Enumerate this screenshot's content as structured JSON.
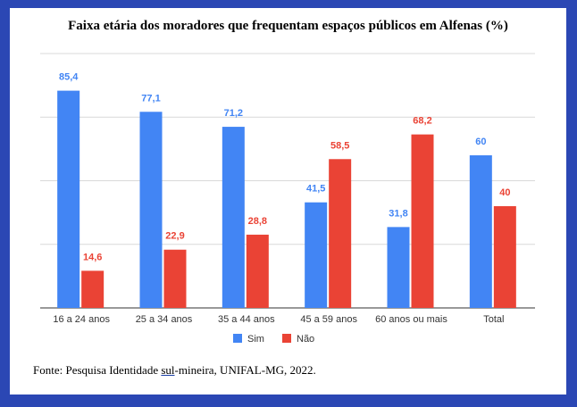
{
  "chart_data": {
    "type": "bar",
    "title": "Faixa etária dos moradores que frequentam espaços públicos em Alfenas (%)",
    "categories": [
      "16 a 24 anos",
      "25 a 34 anos",
      "35 a 44 anos",
      "45 a 59 anos",
      "60 anos ou mais",
      "Total"
    ],
    "series": [
      {
        "name": "Sim",
        "color": "#4285f4",
        "values": [
          85.4,
          77.1,
          71.2,
          41.5,
          31.8,
          60
        ],
        "labels": [
          "85,4",
          "77,1",
          "71,2",
          "41,5",
          "31,8",
          "60"
        ]
      },
      {
        "name": "Não",
        "color": "#ea4335",
        "values": [
          14.6,
          22.9,
          28.8,
          58.5,
          68.2,
          40
        ],
        "labels": [
          "14,6",
          "22,9",
          "28,8",
          "58,5",
          "68,2",
          "40"
        ]
      }
    ],
    "xlabel": "",
    "ylabel": "",
    "ylim": [
      0,
      100
    ],
    "grid": true,
    "legend": "bottom"
  },
  "source": {
    "prefix": "Fonte: Pesquisa Identidade ",
    "underlined": "sul",
    "suffix": "-mineira, UNIFAL-MG, 2022."
  }
}
